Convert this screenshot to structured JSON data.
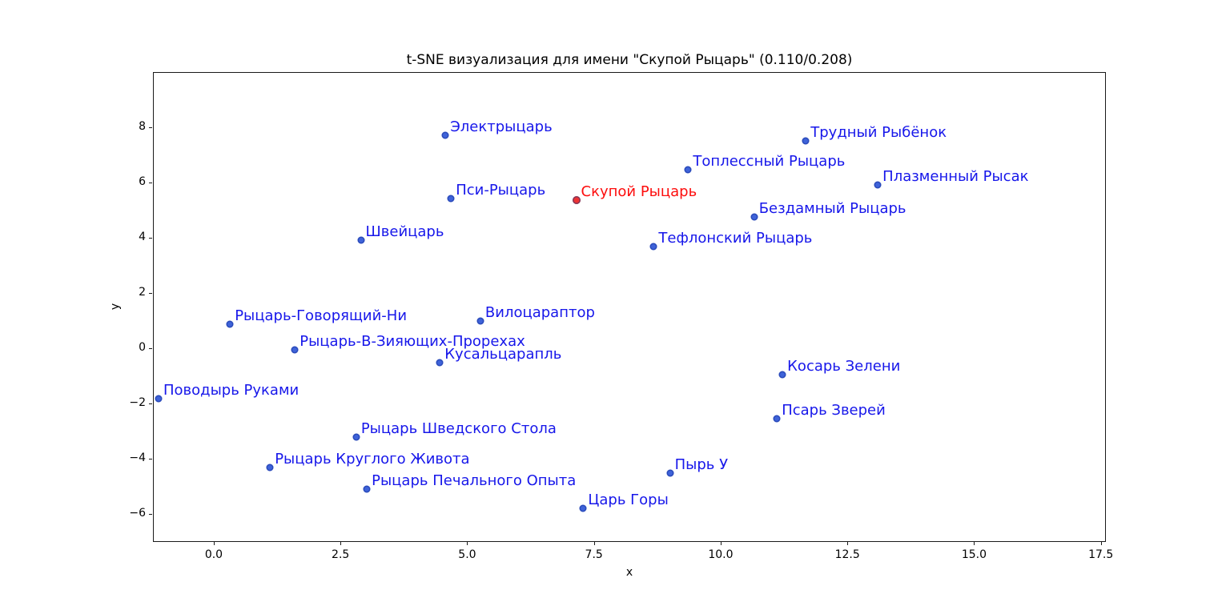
{
  "chart_data": {
    "type": "scatter",
    "title": "t-SNE визуализация для имени \"Скупой Рыцарь\" (0.110/0.208)",
    "xlabel": "x",
    "ylabel": "y",
    "xlim": [
      -1.2,
      17.6
    ],
    "ylim": [
      -7.0,
      10.0
    ],
    "grid": false,
    "legend": null,
    "x_ticks": [
      0.0,
      2.5,
      5.0,
      7.5,
      10.0,
      12.5,
      15.0,
      17.5
    ],
    "x_tick_labels": [
      "0.0",
      "2.5",
      "5.0",
      "7.5",
      "10.0",
      "12.5",
      "15.0",
      "17.5"
    ],
    "y_ticks": [
      8,
      6,
      4,
      2,
      0,
      -2,
      -4,
      -6
    ],
    "y_tick_labels": [
      "8",
      "6",
      "4",
      "2",
      "0",
      "−2",
      "−4",
      "−6"
    ],
    "point_color": "#3f63d9",
    "label_color": "#1717ea",
    "highlight_color": "#ee3333",
    "highlight_label_color": "#fd0d0d",
    "points": [
      {
        "label": "Электрыцарь",
        "x": 4.57,
        "y": 7.7
      },
      {
        "label": "Трудный Рыбёнок",
        "x": 11.68,
        "y": 7.52
      },
      {
        "label": "Топлессный Рыцарь",
        "x": 9.36,
        "y": 6.48
      },
      {
        "label": "Плазменный Рысак",
        "x": 13.1,
        "y": 5.93
      },
      {
        "label": "Пси-Рыцарь",
        "x": 4.68,
        "y": 5.41
      },
      {
        "label": "Скупой Рыцарь",
        "x": 7.15,
        "y": 5.37,
        "highlight": true
      },
      {
        "label": "Бездамный Рыцарь",
        "x": 10.66,
        "y": 4.77
      },
      {
        "label": "Швейцарь",
        "x": 2.9,
        "y": 3.93
      },
      {
        "label": "Тефлонский Рыцарь",
        "x": 8.68,
        "y": 3.7
      },
      {
        "label": "Рыцарь-Говорящий-Ни",
        "x": 0.32,
        "y": 0.88
      },
      {
        "label": "Вилоцараптор",
        "x": 5.26,
        "y": 1.0
      },
      {
        "label": "Рыцарь-В-Зияющих-Прорехах",
        "x": 1.6,
        "y": -0.05
      },
      {
        "label": "Кусальцарапль",
        "x": 4.46,
        "y": -0.51
      },
      {
        "label": "Косарь Зелени",
        "x": 11.22,
        "y": -0.95
      },
      {
        "label": "Поводырь Руками",
        "x": -1.09,
        "y": -1.83
      },
      {
        "label": "Псарь Зверей",
        "x": 11.11,
        "y": -2.55
      },
      {
        "label": "Рыцарь Шведского Стола",
        "x": 2.81,
        "y": -3.2
      },
      {
        "label": "Рыцарь Круглого Живота",
        "x": 1.11,
        "y": -4.3
      },
      {
        "label": "Пырь У",
        "x": 9.0,
        "y": -4.51
      },
      {
        "label": "Рыцарь Печального Опыта",
        "x": 3.02,
        "y": -5.08
      },
      {
        "label": "Царь Горы",
        "x": 7.29,
        "y": -5.77
      }
    ]
  }
}
